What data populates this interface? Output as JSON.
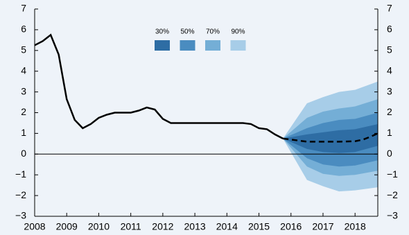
{
  "chart_data": {
    "type": "fan",
    "xlim": [
      2008,
      2018.71
    ],
    "xticks": [
      2008,
      2009,
      2010,
      2011,
      2012,
      2013,
      2014,
      2015,
      2016,
      2017,
      2018
    ],
    "ylim": [
      -3,
      7
    ],
    "yticks": [
      {
        "value": -3,
        "label": "−3"
      },
      {
        "value": -2,
        "label": "−2"
      },
      {
        "value": -1,
        "label": "−1"
      },
      0,
      1,
      2,
      3,
      4,
      5,
      6,
      7
    ],
    "series": [
      {
        "color": "#000000",
        "dashed": false,
        "x": [
          2008.0,
          2008.25,
          2008.5,
          2008.75,
          2009.0,
          2009.25,
          2009.5,
          2009.75,
          2010.0,
          2010.25,
          2010.5,
          2010.75,
          2011.0,
          2011.25,
          2011.5,
          2011.75,
          2012.0,
          2012.25,
          2012.5,
          2013.0,
          2013.5,
          2014.0,
          2014.5,
          2014.75,
          2015.0,
          2015.25,
          2015.5,
          2015.75
        ],
        "values": [
          5.25,
          5.45,
          5.75,
          4.8,
          2.65,
          1.65,
          1.25,
          1.45,
          1.75,
          1.9,
          2.0,
          2.0,
          2.0,
          2.1,
          2.25,
          2.15,
          1.7,
          1.5,
          1.5,
          1.5,
          1.5,
          1.5,
          1.5,
          1.45,
          1.25,
          1.2,
          0.95,
          0.75
        ]
      },
      {
        "color": "#000000",
        "dashed": true,
        "x": [
          2015.75,
          2016.0,
          2016.5,
          2017.0,
          2017.5,
          2018.0,
          2018.25,
          2018.5,
          2018.71
        ],
        "values": [
          0.75,
          0.7,
          0.6,
          0.6,
          0.6,
          0.62,
          0.7,
          0.85,
          1.0
        ]
      }
    ],
    "band_x": [
      2015.75,
      2016.5,
      2017.0,
      2017.5,
      2018.0,
      2018.71
    ],
    "bands": [
      {
        "name": "30%",
        "color": "#2e6da4",
        "upper": [
          0.75,
          0.95,
          1.05,
          1.15,
          1.2,
          1.45
        ],
        "lower": [
          0.75,
          0.25,
          0.1,
          0.05,
          0.1,
          0.4
        ]
      },
      {
        "name": "50%",
        "color": "#4a8cc0",
        "upper": [
          0.75,
          1.25,
          1.5,
          1.65,
          1.7,
          2.0
        ],
        "lower": [
          0.75,
          -0.2,
          -0.5,
          -0.6,
          -0.55,
          -0.3
        ]
      },
      {
        "name": "70%",
        "color": "#74aed6",
        "upper": [
          0.75,
          1.75,
          2.05,
          2.2,
          2.3,
          2.65
        ],
        "lower": [
          0.75,
          -0.6,
          -0.95,
          -1.05,
          -1.0,
          -0.8
        ]
      },
      {
        "name": "90%",
        "color": "#a7cde8",
        "upper": [
          0.75,
          2.45,
          2.75,
          3.0,
          3.1,
          3.5
        ],
        "lower": [
          0.75,
          -1.25,
          -1.55,
          -1.8,
          -1.75,
          -1.6
        ]
      }
    ]
  }
}
